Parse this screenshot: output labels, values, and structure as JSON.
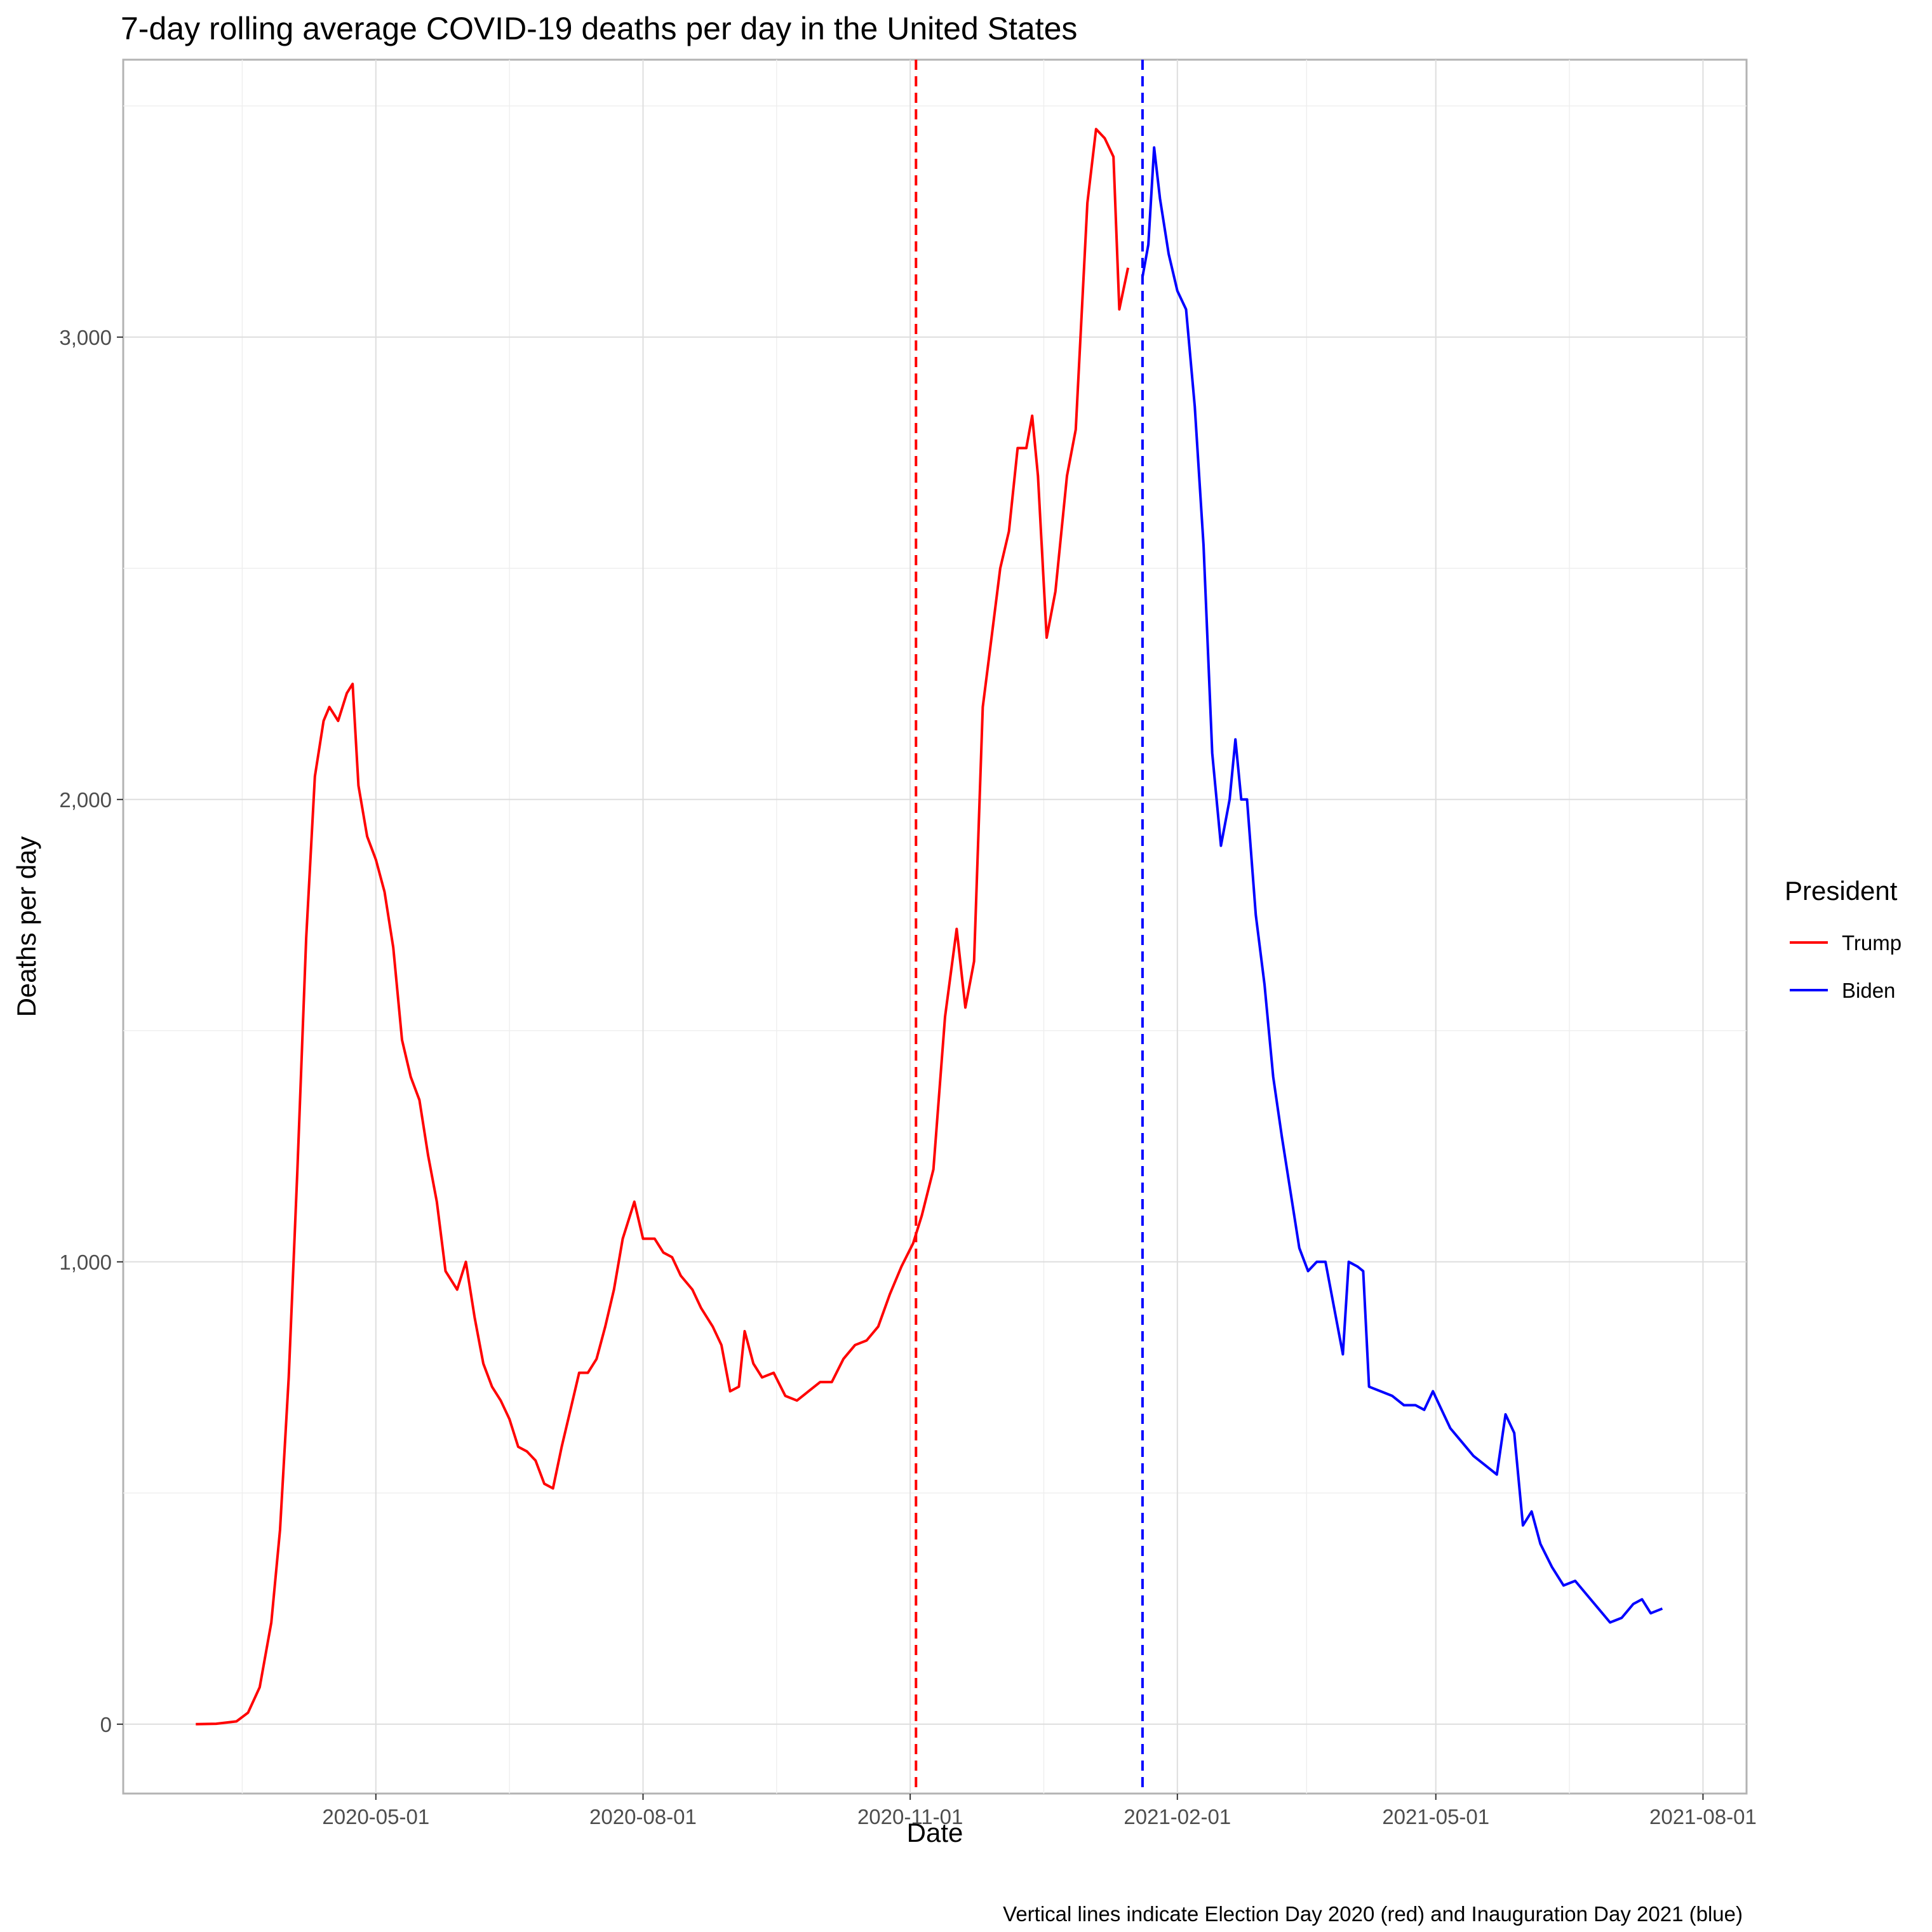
{
  "chart_data": {
    "type": "line",
    "title": "7-day rolling average COVID-19 deaths per day in the United States",
    "xlabel": "Date",
    "ylabel": "Deaths per day",
    "caption": "Vertical lines indicate Election Day 2020 (red) and Inauguration Day 2021 (blue)",
    "x_ticks": [
      "2020-05-01",
      "2020-08-01",
      "2020-11-01",
      "2021-02-01",
      "2021-05-01",
      "2021-08-01"
    ],
    "y_ticks": [
      0,
      1000,
      2000,
      3000
    ],
    "y_tick_labels": [
      "0",
      "1,000",
      "2,000",
      "3,000"
    ],
    "xlim": [
      "2020-02-04",
      "2021-08-16"
    ],
    "ylim": [
      -150,
      3600
    ],
    "grid": true,
    "legend": {
      "title": "President",
      "position": "right",
      "entries": [
        {
          "name": "Trump",
          "color": "#ff0000"
        },
        {
          "name": "Biden",
          "color": "#0000ff"
        }
      ]
    },
    "vlines": [
      {
        "date": "2020-11-03",
        "color": "#ff0000",
        "style": "dashed"
      },
      {
        "date": "2021-01-20",
        "color": "#0000ff",
        "style": "dashed"
      }
    ],
    "series": [
      {
        "name": "Trump",
        "color": "#ff0000",
        "points": [
          [
            "2020-02-29",
            0
          ],
          [
            "2020-03-07",
            1
          ],
          [
            "2020-03-14",
            6
          ],
          [
            "2020-03-18",
            25
          ],
          [
            "2020-03-22",
            80
          ],
          [
            "2020-03-26",
            220
          ],
          [
            "2020-03-29",
            420
          ],
          [
            "2020-04-01",
            750
          ],
          [
            "2020-04-04",
            1200
          ],
          [
            "2020-04-07",
            1700
          ],
          [
            "2020-04-10",
            2050
          ],
          [
            "2020-04-13",
            2170
          ],
          [
            "2020-04-15",
            2200
          ],
          [
            "2020-04-18",
            2170
          ],
          [
            "2020-04-21",
            2230
          ],
          [
            "2020-04-23",
            2250
          ],
          [
            "2020-04-25",
            2030
          ],
          [
            "2020-04-28",
            1920
          ],
          [
            "2020-05-01",
            1870
          ],
          [
            "2020-05-04",
            1800
          ],
          [
            "2020-05-07",
            1680
          ],
          [
            "2020-05-10",
            1480
          ],
          [
            "2020-05-13",
            1400
          ],
          [
            "2020-05-16",
            1350
          ],
          [
            "2020-05-19",
            1230
          ],
          [
            "2020-05-22",
            1130
          ],
          [
            "2020-05-25",
            980
          ],
          [
            "2020-05-29",
            940
          ],
          [
            "2020-06-01",
            1000
          ],
          [
            "2020-06-04",
            880
          ],
          [
            "2020-06-07",
            780
          ],
          [
            "2020-06-10",
            730
          ],
          [
            "2020-06-13",
            700
          ],
          [
            "2020-06-16",
            660
          ],
          [
            "2020-06-19",
            600
          ],
          [
            "2020-06-22",
            590
          ],
          [
            "2020-06-25",
            570
          ],
          [
            "2020-06-28",
            520
          ],
          [
            "2020-07-01",
            510
          ],
          [
            "2020-07-04",
            600
          ],
          [
            "2020-07-07",
            680
          ],
          [
            "2020-07-10",
            760
          ],
          [
            "2020-07-13",
            760
          ],
          [
            "2020-07-16",
            790
          ],
          [
            "2020-07-19",
            860
          ],
          [
            "2020-07-22",
            940
          ],
          [
            "2020-07-25",
            1050
          ],
          [
            "2020-07-29",
            1130
          ],
          [
            "2020-08-01",
            1050
          ],
          [
            "2020-08-05",
            1050
          ],
          [
            "2020-08-08",
            1020
          ],
          [
            "2020-08-11",
            1010
          ],
          [
            "2020-08-14",
            970
          ],
          [
            "2020-08-18",
            940
          ],
          [
            "2020-08-21",
            900
          ],
          [
            "2020-08-25",
            860
          ],
          [
            "2020-08-28",
            820
          ],
          [
            "2020-08-31",
            720
          ],
          [
            "2020-09-03",
            730
          ],
          [
            "2020-09-05",
            850
          ],
          [
            "2020-09-08",
            780
          ],
          [
            "2020-09-11",
            750
          ],
          [
            "2020-09-15",
            760
          ],
          [
            "2020-09-19",
            710
          ],
          [
            "2020-09-23",
            700
          ],
          [
            "2020-09-27",
            720
          ],
          [
            "2020-10-01",
            740
          ],
          [
            "2020-10-05",
            740
          ],
          [
            "2020-10-09",
            790
          ],
          [
            "2020-10-13",
            820
          ],
          [
            "2020-10-17",
            830
          ],
          [
            "2020-10-21",
            860
          ],
          [
            "2020-10-25",
            930
          ],
          [
            "2020-10-29",
            990
          ],
          [
            "2020-11-02",
            1040
          ],
          [
            "2020-11-05",
            1100
          ],
          [
            "2020-11-09",
            1200
          ],
          [
            "2020-11-13",
            1530
          ],
          [
            "2020-11-17",
            1720
          ],
          [
            "2020-11-20",
            1550
          ],
          [
            "2020-11-23",
            1650
          ],
          [
            "2020-11-26",
            2200
          ],
          [
            "2020-11-29",
            2350
          ],
          [
            "2020-12-02",
            2500
          ],
          [
            "2020-12-05",
            2580
          ],
          [
            "2020-12-08",
            2760
          ],
          [
            "2020-12-11",
            2760
          ],
          [
            "2020-12-13",
            2830
          ],
          [
            "2020-12-15",
            2700
          ],
          [
            "2020-12-18",
            2350
          ],
          [
            "2020-12-21",
            2450
          ],
          [
            "2020-12-25",
            2700
          ],
          [
            "2020-12-28",
            2800
          ],
          [
            "2021-01-01",
            3290
          ],
          [
            "2021-01-04",
            3450
          ],
          [
            "2021-01-07",
            3430
          ],
          [
            "2021-01-10",
            3390
          ],
          [
            "2021-01-12",
            3060
          ],
          [
            "2021-01-15",
            3150
          ]
        ]
      },
      {
        "name": "Biden",
        "color": "#0000ff",
        "points": [
          [
            "2021-01-20",
            3130
          ],
          [
            "2021-01-22",
            3200
          ],
          [
            "2021-01-24",
            3410
          ],
          [
            "2021-01-26",
            3300
          ],
          [
            "2021-01-29",
            3180
          ],
          [
            "2021-02-01",
            3100
          ],
          [
            "2021-02-04",
            3060
          ],
          [
            "2021-02-07",
            2850
          ],
          [
            "2021-02-10",
            2550
          ],
          [
            "2021-02-13",
            2100
          ],
          [
            "2021-02-16",
            1900
          ],
          [
            "2021-02-19",
            2000
          ],
          [
            "2021-02-21",
            2130
          ],
          [
            "2021-02-23",
            2000
          ],
          [
            "2021-02-25",
            2000
          ],
          [
            "2021-02-28",
            1750
          ],
          [
            "2021-03-03",
            1600
          ],
          [
            "2021-03-06",
            1400
          ],
          [
            "2021-03-09",
            1270
          ],
          [
            "2021-03-12",
            1150
          ],
          [
            "2021-03-15",
            1030
          ],
          [
            "2021-03-18",
            980
          ],
          [
            "2021-03-21",
            1000
          ],
          [
            "2021-03-24",
            1000
          ],
          [
            "2021-03-27",
            900
          ],
          [
            "2021-03-30",
            800
          ],
          [
            "2021-04-01",
            1000
          ],
          [
            "2021-04-04",
            990
          ],
          [
            "2021-04-06",
            980
          ],
          [
            "2021-04-08",
            730
          ],
          [
            "2021-04-12",
            720
          ],
          [
            "2021-04-16",
            710
          ],
          [
            "2021-04-20",
            690
          ],
          [
            "2021-04-24",
            690
          ],
          [
            "2021-04-27",
            680
          ],
          [
            "2021-04-30",
            720
          ],
          [
            "2021-05-03",
            680
          ],
          [
            "2021-05-06",
            640
          ],
          [
            "2021-05-10",
            610
          ],
          [
            "2021-05-14",
            580
          ],
          [
            "2021-05-18",
            560
          ],
          [
            "2021-05-22",
            540
          ],
          [
            "2021-05-25",
            670
          ],
          [
            "2021-05-28",
            630
          ],
          [
            "2021-05-31",
            430
          ],
          [
            "2021-06-03",
            460
          ],
          [
            "2021-06-06",
            390
          ],
          [
            "2021-06-10",
            340
          ],
          [
            "2021-06-14",
            300
          ],
          [
            "2021-06-18",
            310
          ],
          [
            "2021-06-22",
            280
          ],
          [
            "2021-06-26",
            250
          ],
          [
            "2021-06-30",
            220
          ],
          [
            "2021-07-04",
            230
          ],
          [
            "2021-07-08",
            260
          ],
          [
            "2021-07-11",
            270
          ],
          [
            "2021-07-14",
            240
          ],
          [
            "2021-07-18",
            250
          ]
        ]
      }
    ]
  }
}
